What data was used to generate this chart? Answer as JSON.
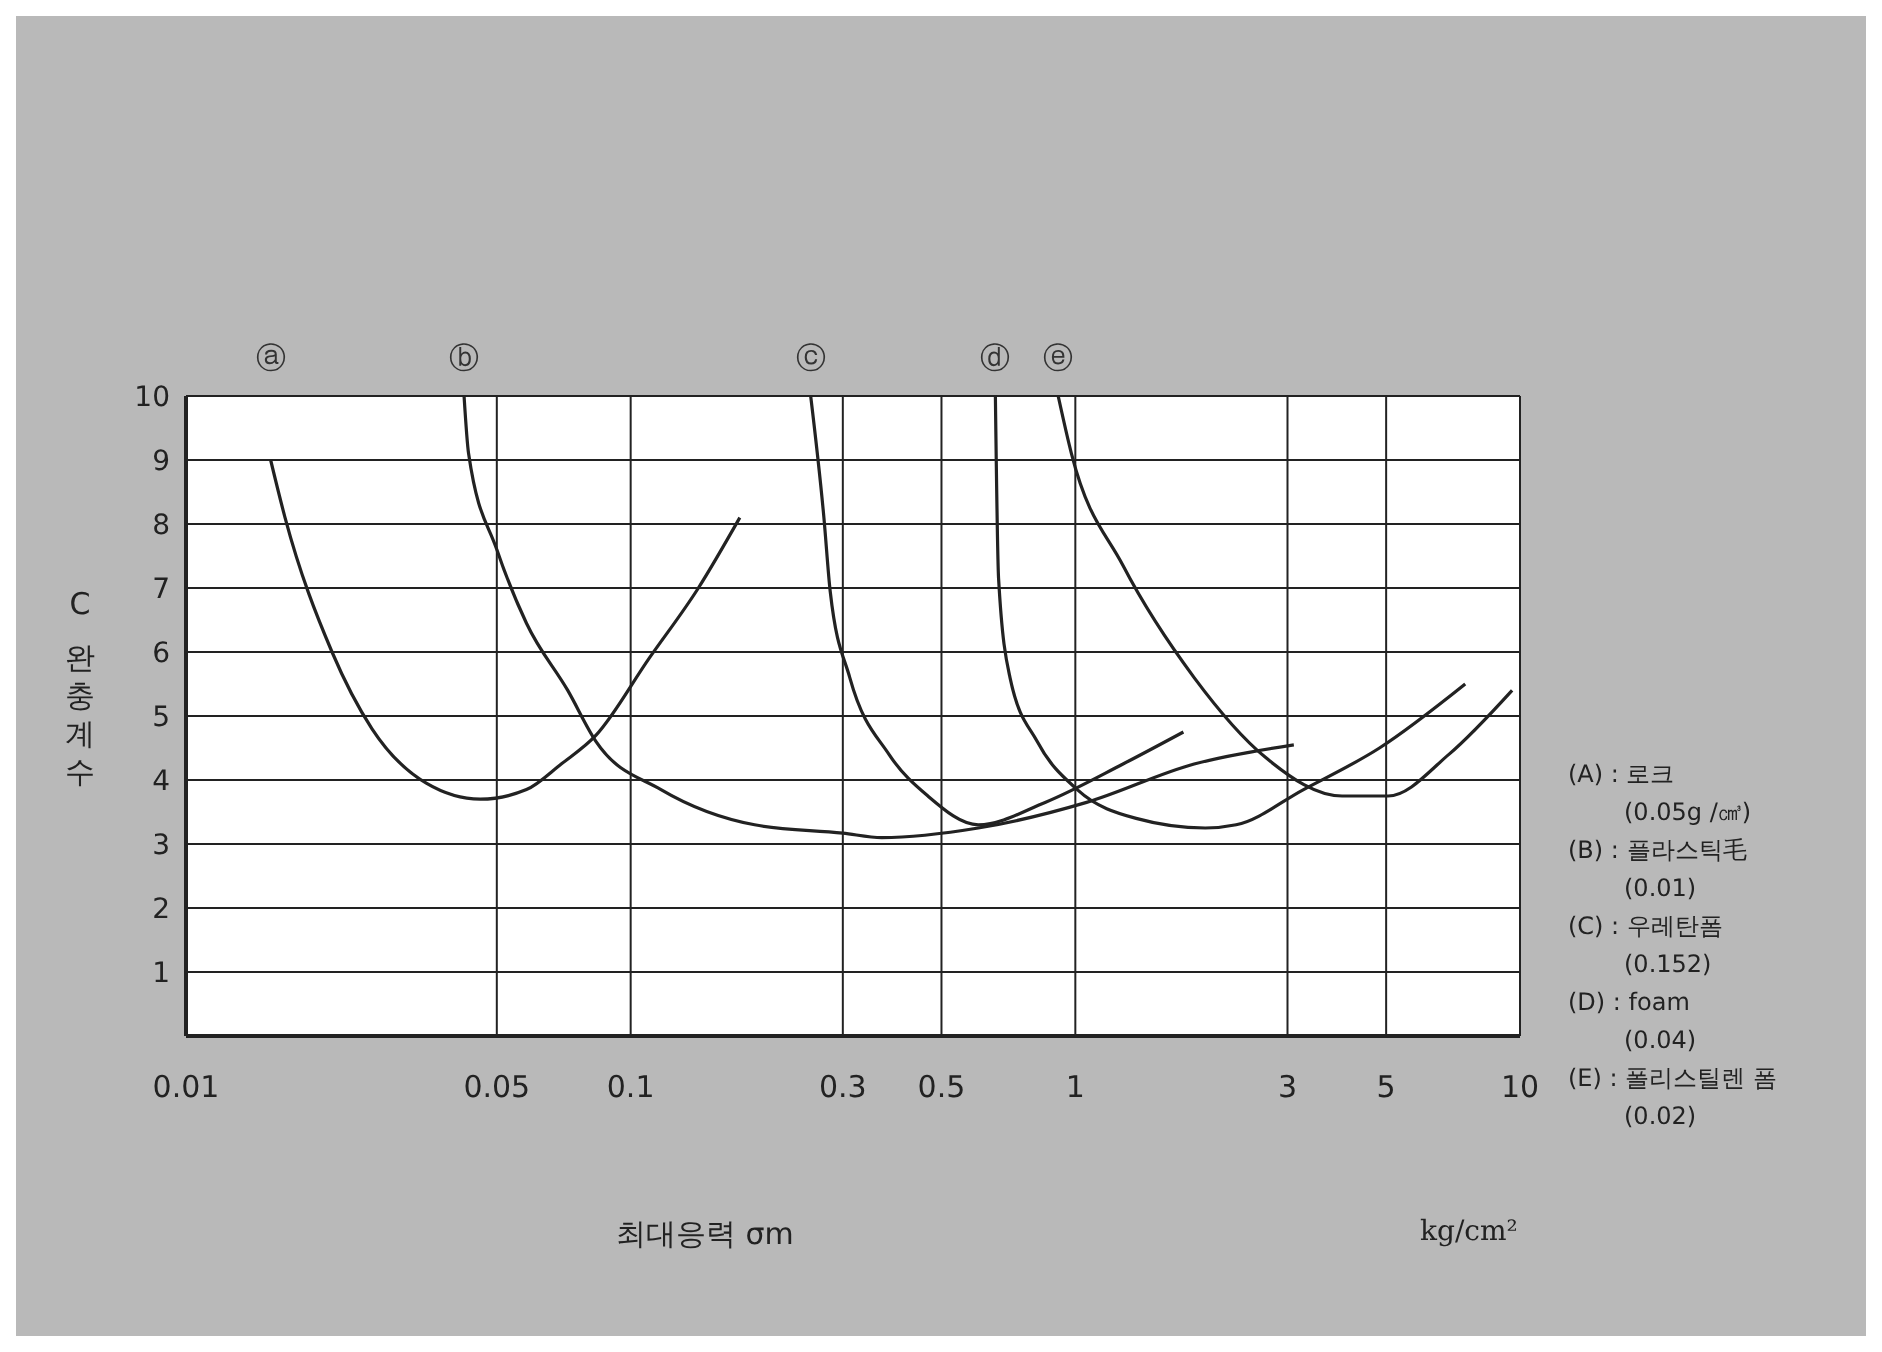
{
  "chart_data": {
    "type": "line",
    "xlabel": "최대응력 σm",
    "ylabel": "C 완충계수",
    "log": "x",
    "xlim": [
      0.01,
      10
    ],
    "ylim": [
      0,
      10
    ],
    "xticks": [
      0.01,
      0.05,
      0.1,
      0.3,
      0.5,
      1,
      3,
      5,
      10
    ],
    "yticks": [
      1,
      2,
      3,
      4,
      5,
      6,
      7,
      8,
      9,
      10
    ],
    "grid": true,
    "marker": "none",
    "line_style": "solid",
    "series": [
      {
        "name": "ⓐ",
        "color": "#222222",
        "x": [
          0.0155,
          0.0167,
          0.0213,
          0.0262,
          0.0347,
          0.0459,
          0.0583,
          0.0698,
          0.0836,
          0.11,
          0.142,
          0.176
        ],
        "values": [
          9.0,
          8.1,
          6.0,
          4.8,
          3.95,
          3.7,
          3.85,
          4.25,
          4.7,
          5.9,
          7.0,
          8.1
        ]
      },
      {
        "name": "ⓑ",
        "color": "#222222",
        "x": [
          0.0422,
          0.0432,
          0.05,
          0.0583,
          0.0722,
          0.0836,
          0.117,
          0.19,
          0.3,
          0.367,
          0.605,
          1.06,
          1.85,
          3.1
        ],
        "values": [
          10,
          9.1,
          7.6,
          6.45,
          5.4,
          4.6,
          3.85,
          3.3,
          3.17,
          3.1,
          3.25,
          3.65,
          4.25,
          4.55
        ]
      },
      {
        "name": "ⓒ",
        "color": "#222222",
        "x": [
          0.254,
          0.272,
          0.281,
          0.311,
          0.381,
          0.466,
          0.605,
          0.855,
          1.28,
          1.75
        ],
        "values": [
          10,
          8.1,
          6.95,
          5.6,
          4.4,
          3.75,
          3.3,
          3.65,
          4.25,
          4.75
        ]
      },
      {
        "name": "ⓓ",
        "color": "#222222",
        "x": [
          0.661,
          0.672,
          0.713,
          0.821,
          1.01,
          1.37,
          1.96,
          2.3,
          3.26,
          4.83,
          7.53
        ],
        "values": [
          10,
          7.15,
          5.6,
          4.6,
          3.85,
          3.4,
          3.25,
          3.3,
          3.85,
          4.5,
          5.5
        ]
      },
      {
        "name": "ⓔ",
        "color": "#222222",
        "x": [
          0.915,
          0.98,
          1.28,
          1.85,
          2.68,
          3.98,
          5.05,
          6.92,
          9.6
        ],
        "values": [
          10,
          9.1,
          7.35,
          5.6,
          4.35,
          3.75,
          3.75,
          4.4,
          5.4
        ]
      }
    ],
    "annotations": [
      "kg/cm²",
      "(A) : 로크",
      "(0.05g /㎤)",
      "(B) : 플라스틱毛",
      "(0.01)",
      "(C) : 우레탄폼",
      "(0.152)",
      "(D) : foam",
      "(0.04)",
      "(E) : 폴리스틸렌 폼",
      "(0.02)"
    ]
  }
}
